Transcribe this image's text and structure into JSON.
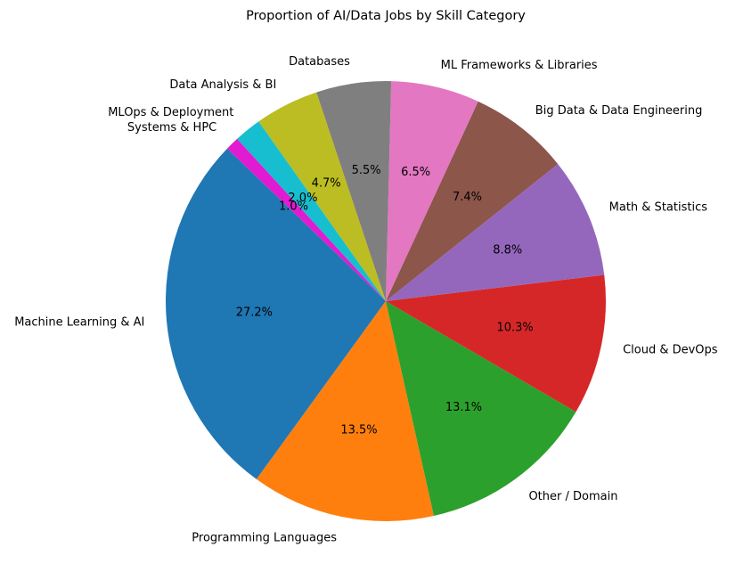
{
  "chart_data": {
    "type": "pie",
    "title": "Proportion of AI/Data Jobs by Skill Category",
    "start_angle_deg": 136.1,
    "direction": "counterclockwise",
    "slices": [
      {
        "label": "Machine Learning & AI",
        "value": 27.2,
        "pct_label": "27.2%",
        "color": "#1f77b4"
      },
      {
        "label": "Programming Languages",
        "value": 13.5,
        "pct_label": "13.5%",
        "color": "#ff7f0e"
      },
      {
        "label": "Other / Domain",
        "value": 13.1,
        "pct_label": "13.1%",
        "color": "#2ca02c"
      },
      {
        "label": "Cloud & DevOps",
        "value": 10.3,
        "pct_label": "10.3%",
        "color": "#d62728"
      },
      {
        "label": "Math & Statistics",
        "value": 8.8,
        "pct_label": "8.8%",
        "color": "#9467bd"
      },
      {
        "label": "Big Data & Data Engineering",
        "value": 7.4,
        "pct_label": "7.4%",
        "color": "#8c564b"
      },
      {
        "label": "ML Frameworks & Libraries",
        "value": 6.5,
        "pct_label": "6.5%",
        "color": "#e377c2"
      },
      {
        "label": "Databases",
        "value": 5.5,
        "pct_label": "5.5%",
        "color": "#7f7f7f"
      },
      {
        "label": "Data Analysis & BI",
        "value": 4.7,
        "pct_label": "4.7%",
        "color": "#bcbd22"
      },
      {
        "label": "MLOps & Deployment",
        "value": 2.0,
        "pct_label": "2.0%",
        "color": "#17becf"
      },
      {
        "label": "Systems & HPC",
        "value": 1.0,
        "pct_label": "1.0%",
        "color": "#e01bd1"
      }
    ]
  }
}
